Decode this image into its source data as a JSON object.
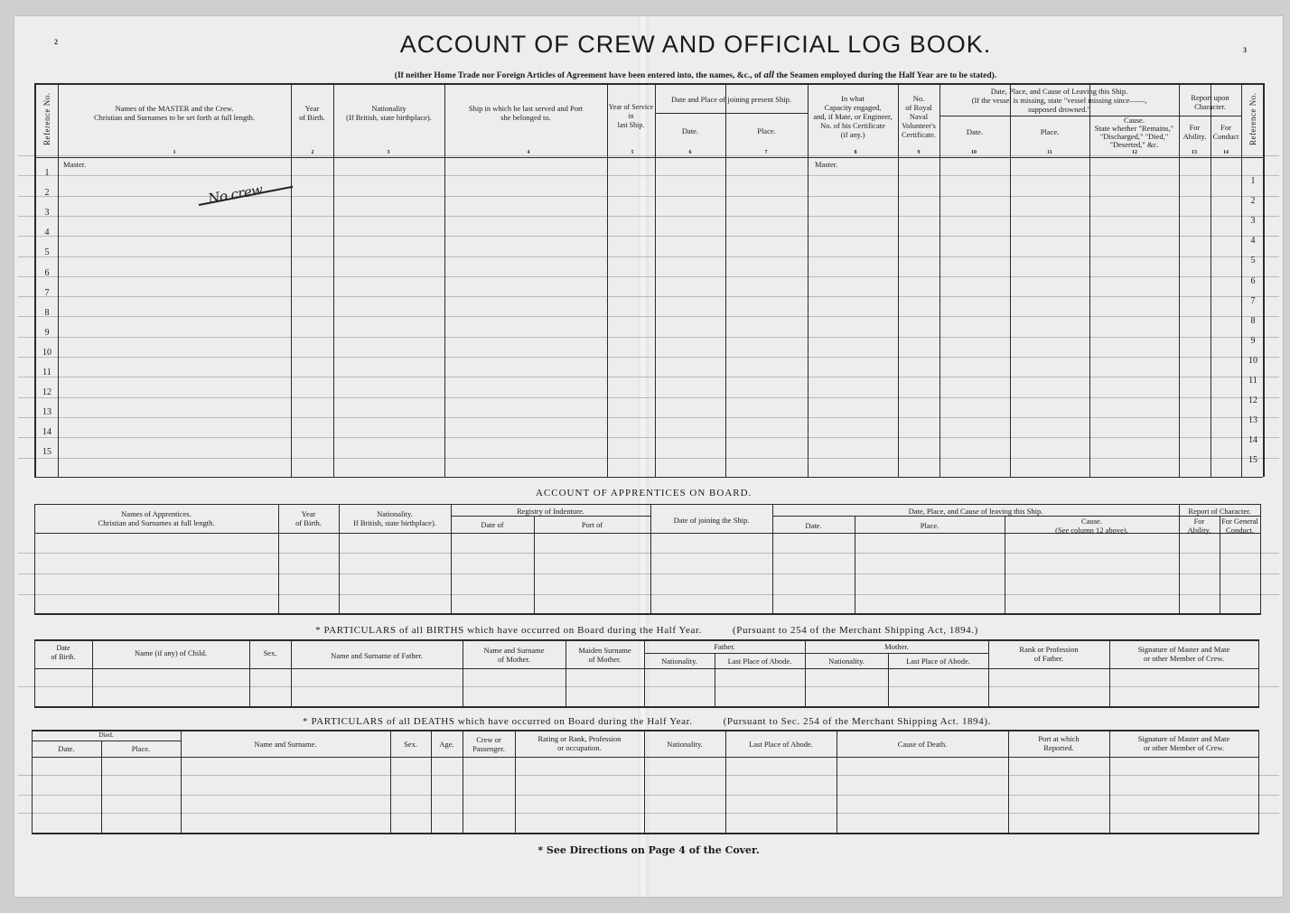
{
  "page_numbers": {
    "left": "2",
    "right": "3"
  },
  "title": "ACCOUNT OF CREW AND OFFICIAL LOG BOOK.",
  "subtitle": {
    "pre": "(If neither Home Trade nor Foreign Articles of Agreement have been entered into, the names, &c., of ",
    "em": "all",
    "post": " the Seamen employed during the Half Year are to be stated)."
  },
  "crew": {
    "headers": {
      "reference": "Reference No.",
      "names": "Names of the MASTER and the Crew.\nChristian and Surnames to be set forth at full length.",
      "year_of_birth": "Year\nof Birth.",
      "nationality": "Nationality\n(If British, state birthplace).",
      "last_ship": "Ship in which he last served and Port\nshe belonged to.",
      "years_service": "Year of Service\nin\nlast Ship.",
      "joining": "Date and Place of joining present Ship.",
      "joining_date": "Date.",
      "joining_place": "Place.",
      "capacity": "In what\nCapacity engaged,\nand, if Mate, or Engineer,\nNo. of his Certificate\n(if any.)",
      "rnv": "No.\nof Royal\nNaval\nVolunteer's\nCertificate.",
      "leaving": "Date, Place, and Cause of Leaving this Ship.\n(If the vessel is missing, state \"vessel missing since——,\nsupposed drowned.\"",
      "leaving_date": "Date.",
      "leaving_place": "Place.",
      "leaving_cause": "Cause.\nState whether \"Remains,\"\n\"Discharged,\" \"Died,\"\n\"Deserted,\" &c.",
      "report": "Report upon\nCharacter.",
      "ability": "For\nAbility.",
      "conduct": "For\nConduct"
    },
    "column_numbers": [
      "1",
      "2",
      "3",
      "4",
      "5",
      "6",
      "7",
      "8",
      "9",
      "10",
      "11",
      "12",
      "13",
      "14"
    ],
    "master_label_names": "Master.",
    "master_label_capacity": "Master.",
    "row_numbers": [
      "1",
      "2",
      "3",
      "4",
      "5",
      "6",
      "7",
      "8",
      "9",
      "10",
      "11",
      "12",
      "13",
      "14",
      "15"
    ],
    "handwritten_entry": "No crew"
  },
  "apprentices": {
    "title": "ACCOUNT OF APPRENTICES ON BOARD.",
    "headers": {
      "names": "Names of Apprentices.\nChristian and Surnames at full length.",
      "year_of_birth": "Year\nof Birth.",
      "nationality": "Nationality.\nIf British, state birthplace).",
      "registry": "Registry of Indenture.",
      "registry_date": "Date of",
      "registry_port": "Port of",
      "joining": "Date of joining the Ship.",
      "leaving": "Date, Place, and Cause of leaving this Ship.",
      "leaving_date": "Date.",
      "leaving_place": "Place.",
      "leaving_cause": "Cause.\n(See column 12 above).",
      "report": "Report of Character.",
      "ability": "For\nAbility.",
      "conduct": "For General\nConduct."
    }
  },
  "births": {
    "title": "* PARTICULARS of all BIRTHS which have occurred on Board during the Half Year.",
    "pursuant": "(Pursuant to 254 of the Merchant Shipping Act, 1894.)",
    "headers": {
      "date": "Date\nof Birth.",
      "child": "Name (if any) of Child.",
      "sex": "Sex.",
      "father_name": "Name and Surname of Father.",
      "mother_name": "Name and Surname\nof Mother.",
      "maiden": "Maiden Surname\nof Mother.",
      "father": "Father.",
      "father_nationality": "Nationality.",
      "father_abode": "Last Place of Abode.",
      "mother": "Mother.",
      "mother_nationality": "Nationality.",
      "mother_abode": "Last Place of Abode.",
      "rank": "Rank or Profession\nof Father.",
      "signature": "Signature of Master and Mate\nor other Member of Crew."
    }
  },
  "deaths": {
    "title": "* PARTICULARS of all DEATHS which have occurred on Board during the Half Year.",
    "pursuant": "(Pursuant to Sec. 254 of the Merchant Shipping Act. 1894).",
    "headers": {
      "died": "Died.",
      "date": "Date.",
      "place": "Place.",
      "name": "Name and Surname.",
      "sex": "Sex.",
      "age": "Age.",
      "crew_passenger": "Crew or\nPassenger.",
      "rating": "Rating or Rank, Profession\nor occupation.",
      "nationality": "Nationality.",
      "abode": "Last Place of Abode.",
      "cause": "Cause of Death.",
      "port": "Port at which\nReported.",
      "signature": "Signature of Master and Mate\nor other Member of Crew."
    }
  },
  "footer": "* See Directions on Page 4 of the Cover."
}
